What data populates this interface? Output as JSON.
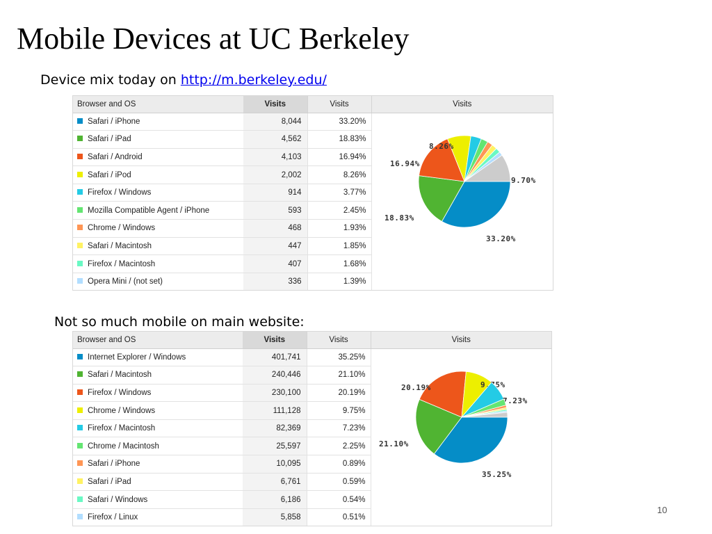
{
  "slide": {
    "title": "Mobile Devices at UC Berkeley",
    "page_number": "10"
  },
  "section1": {
    "caption_prefix": "Device mix today on ",
    "caption_link": "http://m.berkeley.edu/",
    "table": {
      "headers": {
        "dimension": "Browser and OS",
        "visits": "Visits",
        "visits_pct": "Visits",
        "visits_chart": "Visits"
      },
      "rows": [
        {
          "label": "Safari / iPhone",
          "visits": "8,044",
          "pct": "33.20%",
          "color": "#058dc7"
        },
        {
          "label": "Safari / iPad",
          "visits": "4,562",
          "pct": "18.83%",
          "color": "#50b432"
        },
        {
          "label": "Safari / Android",
          "visits": "4,103",
          "pct": "16.94%",
          "color": "#ed561b"
        },
        {
          "label": "Safari / iPod",
          "visits": "2,002",
          "pct": "8.26%",
          "color": "#edef00"
        },
        {
          "label": "Firefox / Windows",
          "visits": "914",
          "pct": "3.77%",
          "color": "#24cbe5"
        },
        {
          "label": "Mozilla Compatible Agent / iPhone",
          "visits": "593",
          "pct": "2.45%",
          "color": "#64e572"
        },
        {
          "label": "Chrome / Windows",
          "visits": "468",
          "pct": "1.93%",
          "color": "#ff9655"
        },
        {
          "label": "Safari / Macintosh",
          "visits": "447",
          "pct": "1.85%",
          "color": "#fff263"
        },
        {
          "label": "Firefox / Macintosh",
          "visits": "407",
          "pct": "1.68%",
          "color": "#6af9c4"
        },
        {
          "label": "Opera Mini / (not set)",
          "visits": "336",
          "pct": "1.39%",
          "color": "#b2deff"
        }
      ]
    },
    "chart_data": {
      "type": "pie",
      "categories": [
        "Safari / iPhone",
        "Safari / iPad",
        "Safari / Android",
        "Safari / iPod",
        "Firefox / Windows",
        "Mozilla Compatible Agent / iPhone",
        "Chrome / Windows",
        "Safari / Macintosh",
        "Firefox / Macintosh",
        "Opera Mini / (not set)",
        "Other"
      ],
      "values": [
        33.2,
        18.83,
        16.94,
        8.26,
        3.77,
        2.45,
        1.93,
        1.85,
        1.68,
        1.39,
        9.7
      ],
      "colors": [
        "#058dc7",
        "#50b432",
        "#ed561b",
        "#edef00",
        "#24cbe5",
        "#64e572",
        "#ff9655",
        "#fff263",
        "#6af9c4",
        "#b2deff",
        "#cccccc"
      ],
      "slice_labels": [
        "33.20%",
        "18.83%",
        "16.94%",
        "8.26%",
        "",
        "",
        "",
        "",
        "",
        "",
        "9.70%"
      ]
    }
  },
  "section2": {
    "caption": "Not so much mobile on main website:",
    "table": {
      "headers": {
        "dimension": "Browser and OS",
        "visits": "Visits",
        "visits_pct": "Visits",
        "visits_chart": "Visits"
      },
      "rows": [
        {
          "label": "Internet Explorer / Windows",
          "visits": "401,741",
          "pct": "35.25%",
          "color": "#058dc7"
        },
        {
          "label": "Safari / Macintosh",
          "visits": "240,446",
          "pct": "21.10%",
          "color": "#50b432"
        },
        {
          "label": "Firefox / Windows",
          "visits": "230,100",
          "pct": "20.19%",
          "color": "#ed561b"
        },
        {
          "label": "Chrome / Windows",
          "visits": "111,128",
          "pct": "9.75%",
          "color": "#edef00"
        },
        {
          "label": "Firefox / Macintosh",
          "visits": "82,369",
          "pct": "7.23%",
          "color": "#24cbe5"
        },
        {
          "label": "Chrome / Macintosh",
          "visits": "25,597",
          "pct": "2.25%",
          "color": "#64e572"
        },
        {
          "label": "Safari / iPhone",
          "visits": "10,095",
          "pct": "0.89%",
          "color": "#ff9655"
        },
        {
          "label": "Safari / iPad",
          "visits": "6,761",
          "pct": "0.59%",
          "color": "#fff263"
        },
        {
          "label": "Safari / Windows",
          "visits": "6,186",
          "pct": "0.54%",
          "color": "#6af9c4"
        },
        {
          "label": "Firefox / Linux",
          "visits": "5,858",
          "pct": "0.51%",
          "color": "#b2deff"
        }
      ]
    },
    "chart_data": {
      "type": "pie",
      "categories": [
        "Internet Explorer / Windows",
        "Safari / Macintosh",
        "Firefox / Windows",
        "Chrome / Windows",
        "Firefox / Macintosh",
        "Chrome / Macintosh",
        "Safari / iPhone",
        "Safari / iPad",
        "Safari / Windows",
        "Firefox / Linux",
        "Other"
      ],
      "values": [
        35.25,
        21.1,
        20.19,
        9.75,
        7.23,
        2.25,
        0.89,
        0.59,
        0.54,
        0.51,
        1.7
      ],
      "colors": [
        "#058dc7",
        "#50b432",
        "#ed561b",
        "#edef00",
        "#24cbe5",
        "#64e572",
        "#ff9655",
        "#fff263",
        "#6af9c4",
        "#b2deff",
        "#cccccc"
      ],
      "slice_labels": [
        "35.25%",
        "21.10%",
        "20.19%",
        "9.75%",
        "7.23%",
        "",
        "",
        "",
        "",
        "",
        ""
      ]
    }
  }
}
